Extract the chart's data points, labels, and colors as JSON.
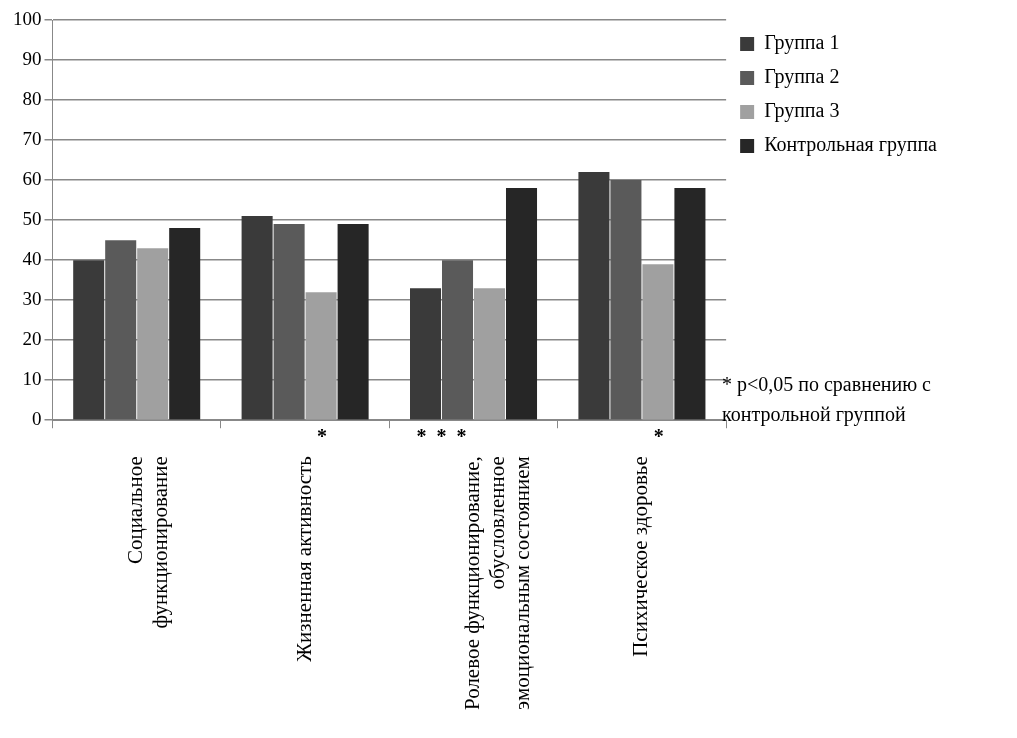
{
  "chart_data": {
    "type": "bar",
    "categories": [
      "Социальное функционирование",
      "Жизненная активность",
      "Ролевое функционирование, обусловленное эмоциональным состоянием",
      "Психическое здоровье"
    ],
    "series": [
      {
        "name": "Группа 1",
        "color": "#3a3a3a",
        "values": [
          40,
          51,
          33,
          62
        ]
      },
      {
        "name": "Группа 2",
        "color": "#5a5a5a",
        "values": [
          45,
          49,
          40,
          60
        ]
      },
      {
        "name": "Группа 3",
        "color": "#a0a0a0",
        "values": [
          43,
          32,
          33,
          39
        ]
      },
      {
        "name": "Контрольная группа",
        "color": "#262626",
        "values": [
          48,
          49,
          58,
          58
        ]
      }
    ],
    "ylim": [
      0,
      100
    ],
    "yticks": [
      0,
      10,
      20,
      30,
      40,
      50,
      60,
      70,
      80,
      90,
      100
    ],
    "grid": "y",
    "legend": "right",
    "annotations": [
      "*",
      "*  *  *",
      "*",
      "* p<0,05 по сравнению с контрольной группой"
    ]
  }
}
